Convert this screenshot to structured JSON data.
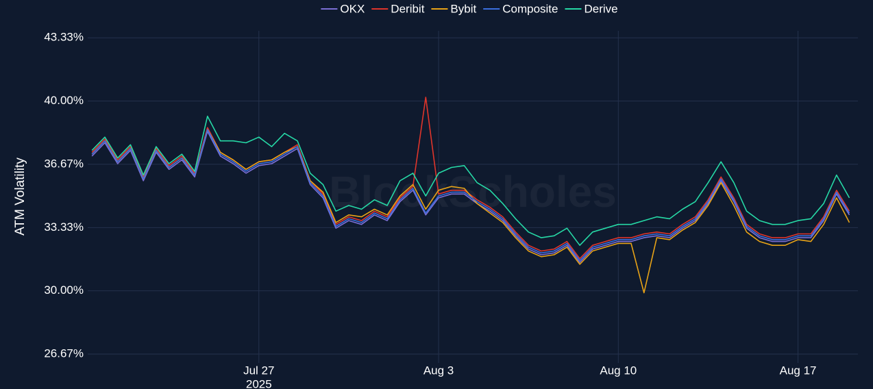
{
  "chart_data": {
    "type": "line",
    "y_label": "ATM Volatility",
    "watermark": "BlockScholes",
    "x_year_label": "2025",
    "x": [
      "2025-07-20T12:00",
      "2025-07-21T00:00",
      "2025-07-21T12:00",
      "2025-07-22T00:00",
      "2025-07-22T12:00",
      "2025-07-23T00:00",
      "2025-07-23T12:00",
      "2025-07-24T00:00",
      "2025-07-24T12:00",
      "2025-07-25T00:00",
      "2025-07-25T12:00",
      "2025-07-26T00:00",
      "2025-07-26T12:00",
      "2025-07-27T00:00",
      "2025-07-27T12:00",
      "2025-07-28T00:00",
      "2025-07-28T12:00",
      "2025-07-29T00:00",
      "2025-07-29T12:00",
      "2025-07-30T00:00",
      "2025-07-30T12:00",
      "2025-07-31T00:00",
      "2025-07-31T12:00",
      "2025-08-01T00:00",
      "2025-08-01T12:00",
      "2025-08-02T00:00",
      "2025-08-02T12:00",
      "2025-08-03T00:00",
      "2025-08-03T12:00",
      "2025-08-04T00:00",
      "2025-08-04T12:00",
      "2025-08-05T00:00",
      "2025-08-05T12:00",
      "2025-08-06T00:00",
      "2025-08-06T12:00",
      "2025-08-07T00:00",
      "2025-08-07T12:00",
      "2025-08-08T00:00",
      "2025-08-08T12:00",
      "2025-08-09T00:00",
      "2025-08-09T12:00",
      "2025-08-10T00:00",
      "2025-08-10T12:00",
      "2025-08-11T00:00",
      "2025-08-11T12:00",
      "2025-08-12T00:00",
      "2025-08-12T12:00",
      "2025-08-13T00:00",
      "2025-08-13T12:00",
      "2025-08-14T00:00",
      "2025-08-14T12:00",
      "2025-08-15T00:00",
      "2025-08-15T12:00",
      "2025-08-16T00:00",
      "2025-08-16T12:00",
      "2025-08-17T00:00",
      "2025-08-17T12:00",
      "2025-08-18T00:00",
      "2025-08-18T12:00",
      "2025-08-19T00:00"
    ],
    "xlim": [
      "2025-07-20T08:00",
      "2025-08-19T08:00"
    ],
    "xticks": [
      {
        "value": "2025-07-27T00:00",
        "label": "Jul 27"
      },
      {
        "value": "2025-08-03T00:00",
        "label": "Aug 3"
      },
      {
        "value": "2025-08-10T00:00",
        "label": "Aug 10"
      },
      {
        "value": "2025-08-17T00:00",
        "label": "Aug 17"
      }
    ],
    "ylim": [
      26.2,
      43.7
    ],
    "yticks": [
      {
        "value": 26.67,
        "label": "26.67%"
      },
      {
        "value": 30.0,
        "label": "30.00%"
      },
      {
        "value": 33.33,
        "label": "33.33%"
      },
      {
        "value": 36.67,
        "label": "36.67%"
      },
      {
        "value": 40.0,
        "label": "40.00%"
      },
      {
        "value": 43.33,
        "label": "43.33%"
      }
    ],
    "grid": true,
    "legend": "top",
    "series": [
      {
        "name": "OKX",
        "color": "#7b6fd6",
        "values": [
          37.1,
          37.8,
          36.7,
          37.4,
          35.8,
          37.3,
          36.4,
          36.9,
          36.0,
          38.4,
          37.1,
          36.7,
          36.2,
          36.6,
          36.7,
          37.1,
          37.5,
          35.6,
          34.9,
          33.3,
          33.7,
          33.5,
          34.0,
          33.7,
          34.7,
          35.3,
          34.0,
          34.9,
          35.1,
          35.1,
          34.6,
          34.2,
          33.7,
          32.9,
          32.2,
          31.9,
          32.0,
          32.4,
          31.5,
          32.2,
          32.4,
          32.6,
          32.6,
          32.8,
          32.9,
          32.8,
          33.3,
          33.7,
          34.6,
          35.8,
          34.7,
          33.3,
          32.8,
          32.6,
          32.6,
          32.8,
          32.8,
          33.7,
          35.1,
          34.0
        ]
      },
      {
        "name": "Deribit",
        "color": "#e0352b",
        "values": [
          37.3,
          38.0,
          36.9,
          37.6,
          36.0,
          37.5,
          36.6,
          37.1,
          36.2,
          38.6,
          37.3,
          36.9,
          36.4,
          36.8,
          36.9,
          37.3,
          37.7,
          35.8,
          35.1,
          33.5,
          33.9,
          33.7,
          34.2,
          33.9,
          34.9,
          35.5,
          40.2,
          35.1,
          35.3,
          35.3,
          34.8,
          34.4,
          33.9,
          33.1,
          32.4,
          32.1,
          32.2,
          32.6,
          31.7,
          32.4,
          32.6,
          32.8,
          32.8,
          33.0,
          33.1,
          33.0,
          33.5,
          33.9,
          34.8,
          36.0,
          34.9,
          33.5,
          33.0,
          32.8,
          32.8,
          33.0,
          33.0,
          33.9,
          35.3,
          34.2
        ]
      },
      {
        "name": "Bybit",
        "color": "#e8a317",
        "values": [
          37.2,
          37.9,
          36.8,
          37.5,
          35.9,
          37.4,
          36.5,
          37.0,
          36.1,
          38.5,
          37.3,
          36.9,
          36.4,
          36.8,
          36.9,
          37.3,
          37.6,
          35.8,
          35.2,
          33.6,
          34.0,
          33.9,
          34.3,
          34.0,
          35.0,
          35.6,
          34.3,
          35.3,
          35.5,
          35.4,
          34.6,
          34.1,
          33.6,
          32.8,
          32.1,
          31.8,
          31.9,
          32.3,
          31.4,
          32.1,
          32.3,
          32.5,
          32.5,
          29.9,
          32.8,
          32.7,
          33.2,
          33.6,
          34.5,
          35.7,
          34.5,
          33.1,
          32.6,
          32.4,
          32.4,
          32.7,
          32.6,
          33.5,
          34.9,
          33.6
        ]
      },
      {
        "name": "Composite",
        "color": "#3b6fe0",
        "values": [
          37.2,
          37.9,
          36.8,
          37.5,
          35.9,
          37.4,
          36.5,
          37.0,
          36.1,
          38.5,
          37.2,
          36.8,
          36.3,
          36.7,
          36.8,
          37.2,
          37.6,
          35.7,
          35.0,
          33.4,
          33.8,
          33.6,
          34.1,
          33.8,
          34.8,
          35.4,
          34.1,
          35.0,
          35.2,
          35.2,
          34.7,
          34.3,
          33.8,
          33.0,
          32.3,
          32.0,
          32.1,
          32.5,
          31.6,
          32.3,
          32.5,
          32.7,
          32.7,
          32.9,
          33.0,
          32.9,
          33.4,
          33.8,
          34.7,
          35.9,
          34.8,
          33.4,
          32.9,
          32.7,
          32.7,
          32.9,
          32.9,
          33.8,
          35.2,
          34.1
        ]
      },
      {
        "name": "Derive",
        "color": "#26d9a6",
        "values": [
          37.4,
          38.1,
          37.0,
          37.7,
          36.1,
          37.6,
          36.7,
          37.2,
          36.3,
          39.2,
          37.9,
          37.9,
          37.8,
          38.1,
          37.6,
          38.3,
          37.9,
          36.2,
          35.6,
          34.2,
          34.5,
          34.3,
          34.8,
          34.5,
          35.8,
          36.2,
          35.0,
          36.2,
          36.5,
          36.6,
          35.7,
          35.3,
          34.6,
          33.8,
          33.1,
          32.8,
          32.9,
          33.3,
          32.4,
          33.1,
          33.3,
          33.5,
          33.5,
          33.7,
          33.9,
          33.8,
          34.3,
          34.7,
          35.7,
          36.8,
          35.7,
          34.2,
          33.7,
          33.5,
          33.5,
          33.7,
          33.8,
          34.6,
          36.1,
          34.9
        ]
      }
    ]
  }
}
